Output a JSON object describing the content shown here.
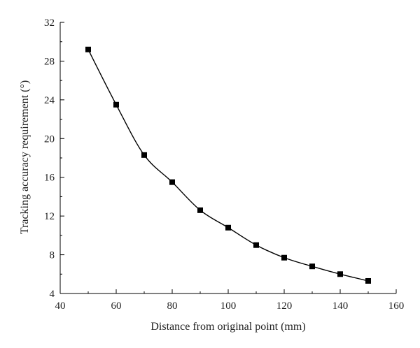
{
  "chart_data": {
    "type": "line",
    "xlabel": "Distance from original point (mm)",
    "ylabel": "Tracking accuracy requirement (°)",
    "xlim": [
      40,
      160
    ],
    "ylim": [
      4,
      32
    ],
    "xticks": [
      40,
      60,
      80,
      100,
      120,
      140,
      160
    ],
    "yticks": [
      4,
      8,
      12,
      16,
      20,
      24,
      28,
      32
    ],
    "marker": "square",
    "smooth": true,
    "grid": false,
    "series": [
      {
        "x": [
          50,
          60,
          70,
          80,
          90,
          100,
          110,
          120,
          130,
          140,
          150
        ],
        "y": [
          29.2,
          23.5,
          18.3,
          15.5,
          12.6,
          10.8,
          9.0,
          7.7,
          6.8,
          6.0,
          5.3
        ]
      }
    ]
  }
}
